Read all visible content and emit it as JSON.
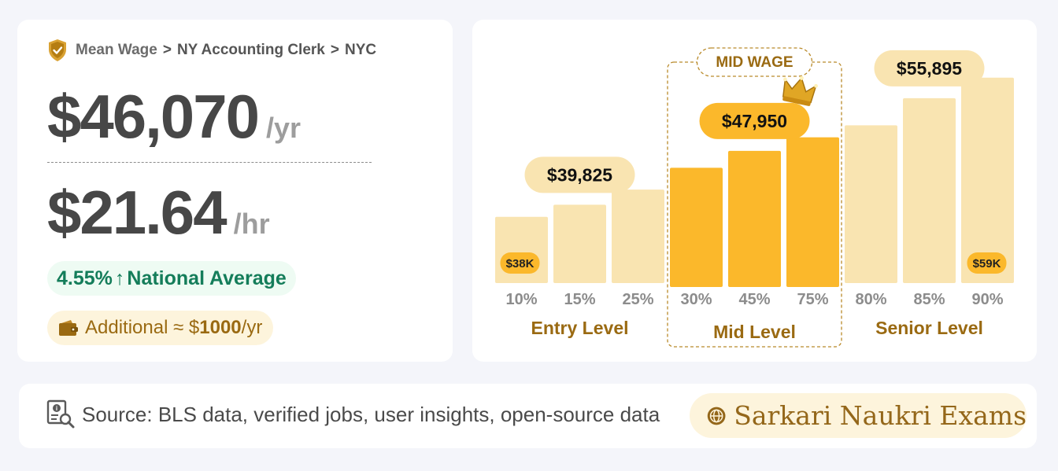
{
  "breadcrumb": {
    "item1": "Mean Wage",
    "item2": "NY Accounting Clerk",
    "item3": "NYC",
    "separator": ">"
  },
  "annual": {
    "value": "$46,070",
    "unit": "/yr"
  },
  "hourly": {
    "value": "$21.64",
    "unit": "/hr"
  },
  "national": {
    "percent": "4.55%",
    "arrow": "↑",
    "label": "National Average"
  },
  "additional": {
    "prefix": "Additional ≈ $",
    "amount": "1000",
    "suffix": "/yr"
  },
  "footer": {
    "source_text": "Source: BLS data, verified jobs, user insights, open-source data",
    "brand_name": "Sarkari Naukri Exams"
  },
  "colors": {
    "bar_light": "#f9e4b1",
    "bar_mid": "#fbb82b",
    "label_gold": "#9a6a12",
    "tick_gray": "#8c8c8c",
    "green": "#147d5a"
  },
  "icons": [
    "shield-check-icon",
    "wallet-icon",
    "document-search-icon",
    "globe-icon",
    "crown-icon"
  ],
  "chart_data": {
    "type": "bar",
    "categories": [
      "10%",
      "15%",
      "25%",
      "30%",
      "45%",
      "75%",
      "80%",
      "85%",
      "90%"
    ],
    "values": [
      38000,
      39825,
      42100,
      45400,
      47950,
      50000,
      51800,
      55895,
      59000
    ],
    "groups": [
      {
        "label": "Entry Level",
        "range": [
          0,
          2
        ]
      },
      {
        "label": "Mid Level",
        "range": [
          3,
          5
        ],
        "badge": "MID WAGE"
      },
      {
        "label": "Senior Level",
        "range": [
          6,
          8
        ]
      }
    ],
    "highlights": [
      {
        "index": 1,
        "label": "$39,825"
      },
      {
        "index": 4,
        "label": "$47,950"
      },
      {
        "index": 7,
        "label": "$55,895"
      }
    ],
    "inner_labels": [
      {
        "index": 0,
        "label": "$38K"
      },
      {
        "index": 8,
        "label": "$59K"
      }
    ],
    "mid_range": [
      3,
      5
    ],
    "ylim": [
      28000,
      63000
    ]
  }
}
